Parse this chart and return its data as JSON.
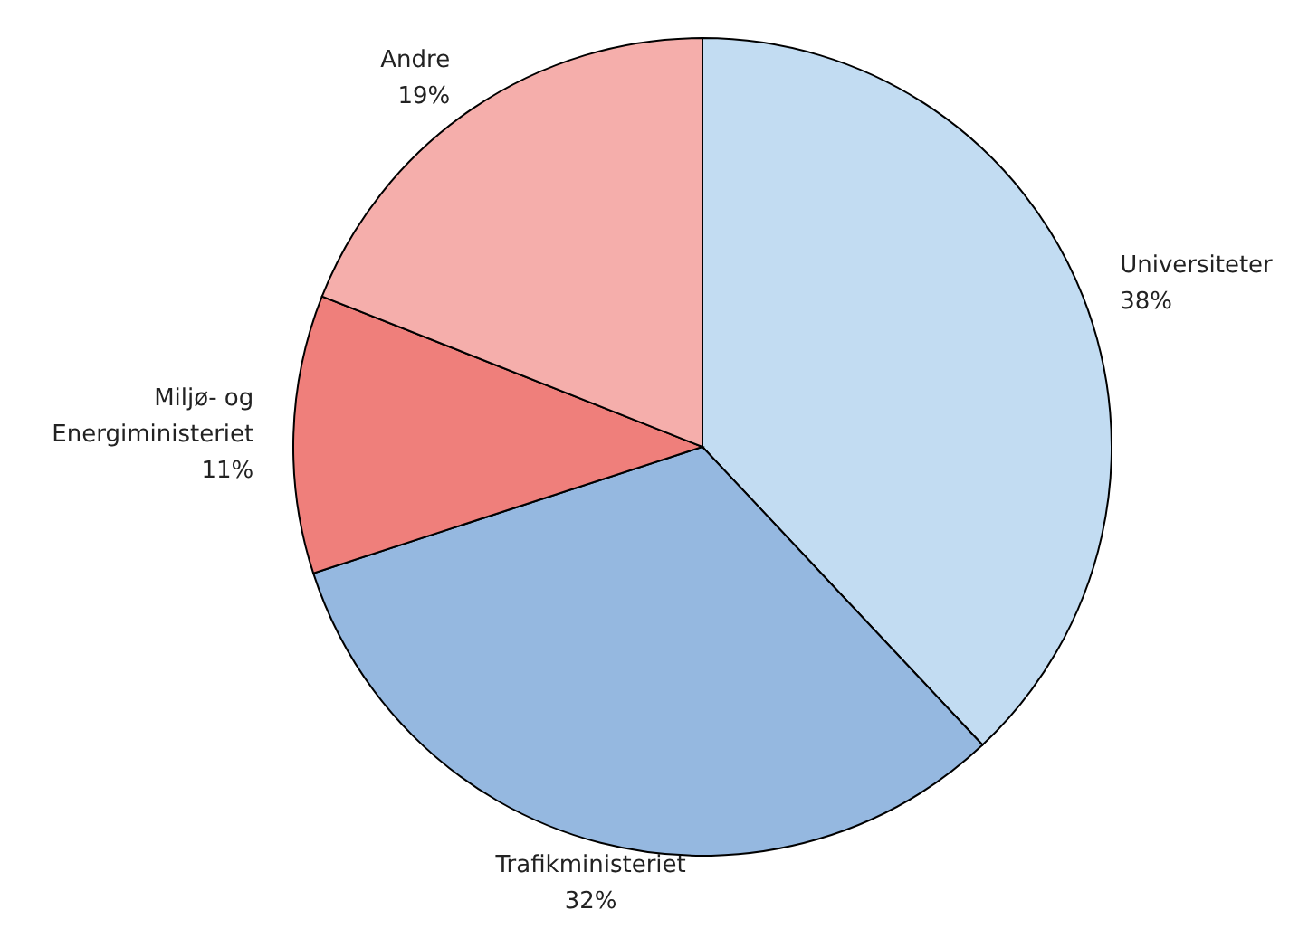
{
  "chart_data": {
    "type": "pie",
    "categories": [
      "Universiteter",
      "Trafikministeriet",
      "Miljø- og\nEnergiministeriet",
      "Andre"
    ],
    "values": [
      38,
      32,
      11,
      19
    ],
    "value_labels": [
      "38%",
      "32%",
      "11%",
      "19%"
    ],
    "colors": [
      "#c2dcf2",
      "#95b8e0",
      "#ef7f7b",
      "#f5aeab"
    ]
  }
}
